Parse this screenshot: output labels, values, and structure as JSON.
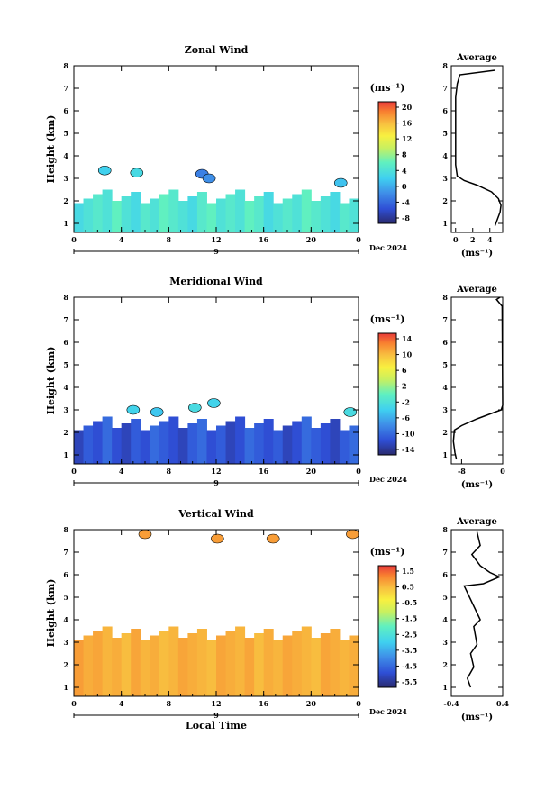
{
  "chart_data": [
    {
      "type": "heatmap",
      "title": "Zonal Wind",
      "ylabel": "Height (km)",
      "unit_label": "(ms⁻¹)",
      "x_ticks": [
        "0",
        "4",
        "8",
        "12",
        "16",
        "20",
        "0"
      ],
      "x_range": [
        0,
        24
      ],
      "y_ticks": [
        "1",
        "2",
        "3",
        "4",
        "5",
        "6",
        "7",
        "8"
      ],
      "y_range": [
        0.6,
        8
      ],
      "date_day": "9",
      "date_label": "Dec 2024",
      "colorbar_ticks": [
        "20",
        "16",
        "12",
        "8",
        "4",
        "0",
        "-4",
        "-8"
      ],
      "colorbar_range": [
        -10,
        22
      ],
      "fill": {
        "low_top": 2.2,
        "base_value": 4,
        "column_values": [
          3,
          4,
          5,
          4,
          6,
          4,
          3,
          5,
          4,
          6,
          5,
          4,
          3,
          5,
          6,
          4,
          5,
          4,
          6,
          5,
          3,
          4,
          5,
          4,
          6,
          5,
          4,
          3,
          5,
          4
        ],
        "patches": [
          [
            2.6,
            3.35,
            2
          ],
          [
            5.3,
            3.25,
            3
          ],
          [
            10.8,
            3.2,
            -3
          ],
          [
            11.4,
            3.0,
            -2
          ],
          [
            22.5,
            2.8,
            1
          ]
        ]
      },
      "average": {
        "title": "Average",
        "x_ticks": [
          "0",
          "2",
          "4"
        ],
        "x_range": [
          -0.5,
          5.5
        ],
        "xlabel": "(ms⁻¹)",
        "profile": [
          [
            4.6,
            7.8
          ],
          [
            0.5,
            7.6
          ],
          [
            0.2,
            7.2
          ],
          [
            0.0,
            6.6
          ],
          [
            0.0,
            3.6
          ],
          [
            0.2,
            3.1
          ],
          [
            1.0,
            2.9
          ],
          [
            2.5,
            2.7
          ],
          [
            4.2,
            2.4
          ],
          [
            5.0,
            2.1
          ],
          [
            5.3,
            1.8
          ],
          [
            5.2,
            1.5
          ],
          [
            4.9,
            1.2
          ],
          [
            4.6,
            0.9
          ]
        ]
      }
    },
    {
      "type": "heatmap",
      "title": "Meridional Wind",
      "ylabel": "Height (km)",
      "unit_label": "(ms⁻¹)",
      "x_ticks": [
        "0",
        "4",
        "8",
        "12",
        "16",
        "20",
        "0"
      ],
      "x_range": [
        0,
        24
      ],
      "y_ticks": [
        "1",
        "2",
        "3",
        "4",
        "5",
        "6",
        "7",
        "8"
      ],
      "y_range": [
        0.6,
        8
      ],
      "date_day": "9",
      "date_label": "Dec 2024",
      "colorbar_ticks": [
        "14",
        "10",
        "6",
        "2",
        "-2",
        "-6",
        "-10",
        "-14"
      ],
      "colorbar_range": [
        -16,
        18
      ],
      "fill": {
        "low_top": 2.4,
        "base_value": -12,
        "column_values": [
          -13,
          -11,
          -12,
          -10,
          -12,
          -13,
          -11,
          -12,
          -10,
          -11,
          -12,
          -13,
          -11,
          -10,
          -12,
          -11,
          -13,
          -12,
          -10,
          -11,
          -12,
          -11,
          -13,
          -12,
          -10,
          -11,
          -12,
          -13,
          -11,
          -10
        ],
        "patches": [
          [
            5.0,
            3.0,
            -3
          ],
          [
            7.0,
            2.9,
            -4
          ],
          [
            10.2,
            3.1,
            -2
          ],
          [
            11.8,
            3.3,
            -3
          ],
          [
            23.3,
            2.9,
            -2
          ]
        ]
      },
      "average": {
        "title": "Average",
        "x_ticks": [
          "-8",
          "0"
        ],
        "x_range": [
          -10,
          0
        ],
        "xlabel": "(ms⁻¹)",
        "profile": [
          [
            -0.5,
            8.0
          ],
          [
            -1.2,
            7.9
          ],
          [
            -0.1,
            7.6
          ],
          [
            0.0,
            3.2
          ],
          [
            -0.3,
            3.0
          ],
          [
            -1.5,
            2.9
          ],
          [
            -5.0,
            2.6
          ],
          [
            -8.0,
            2.3
          ],
          [
            -9.4,
            2.1
          ],
          [
            -9.6,
            1.6
          ],
          [
            -9.3,
            1.1
          ],
          [
            -9.0,
            0.8
          ]
        ]
      }
    },
    {
      "type": "heatmap",
      "title": "Vertical Wind",
      "ylabel": "Height (km)",
      "xlabel": "Local Time",
      "unit_label": "(ms⁻¹)",
      "x_ticks": [
        "0",
        "4",
        "8",
        "12",
        "16",
        "20",
        "0"
      ],
      "x_range": [
        0,
        24
      ],
      "y_ticks": [
        "1",
        "2",
        "3",
        "4",
        "5",
        "6",
        "7",
        "8"
      ],
      "y_range": [
        0.6,
        8
      ],
      "date_day": "9",
      "date_label": "Dec 2024",
      "colorbar_ticks": [
        "1.5",
        "0.5",
        "-0.5",
        "-1.5",
        "-2.5",
        "-3.5",
        "-4.5",
        "-5.5"
      ],
      "colorbar_range": [
        -6,
        2
      ],
      "fill": {
        "low_top": 3.4,
        "base_value": 0.8,
        "column_values": [
          1.0,
          0.8,
          0.9,
          0.7,
          0.8,
          0.6,
          0.9,
          0.7,
          0.8,
          0.6,
          0.7,
          0.9,
          0.8,
          0.7,
          0.6,
          0.9,
          0.8,
          0.7,
          0.9,
          0.6,
          0.8,
          0.7,
          0.9,
          0.8,
          0.7,
          0.6,
          0.9,
          0.8,
          0.7,
          0.8
        ],
        "patches": [
          [
            6.0,
            7.8,
            1.0
          ],
          [
            12.1,
            7.6,
            1.0
          ],
          [
            16.8,
            7.6,
            1.0
          ],
          [
            23.5,
            7.8,
            1.0
          ]
        ]
      },
      "average": {
        "title": "Average",
        "x_ticks": [
          "-0.4",
          "0.4"
        ],
        "x_range": [
          -0.4,
          0.4
        ],
        "xlabel": "(ms⁻¹)",
        "profile": [
          [
            0.0,
            7.9
          ],
          [
            0.05,
            7.3
          ],
          [
            -0.08,
            6.9
          ],
          [
            0.05,
            6.4
          ],
          [
            0.2,
            6.1
          ],
          [
            0.35,
            5.9
          ],
          [
            0.1,
            5.6
          ],
          [
            -0.2,
            5.5
          ],
          [
            0.05,
            4.0
          ],
          [
            -0.05,
            3.7
          ],
          [
            0.0,
            2.9
          ],
          [
            -0.1,
            2.5
          ],
          [
            -0.05,
            1.9
          ],
          [
            -0.15,
            1.4
          ],
          [
            -0.1,
            1.0
          ]
        ]
      }
    }
  ]
}
